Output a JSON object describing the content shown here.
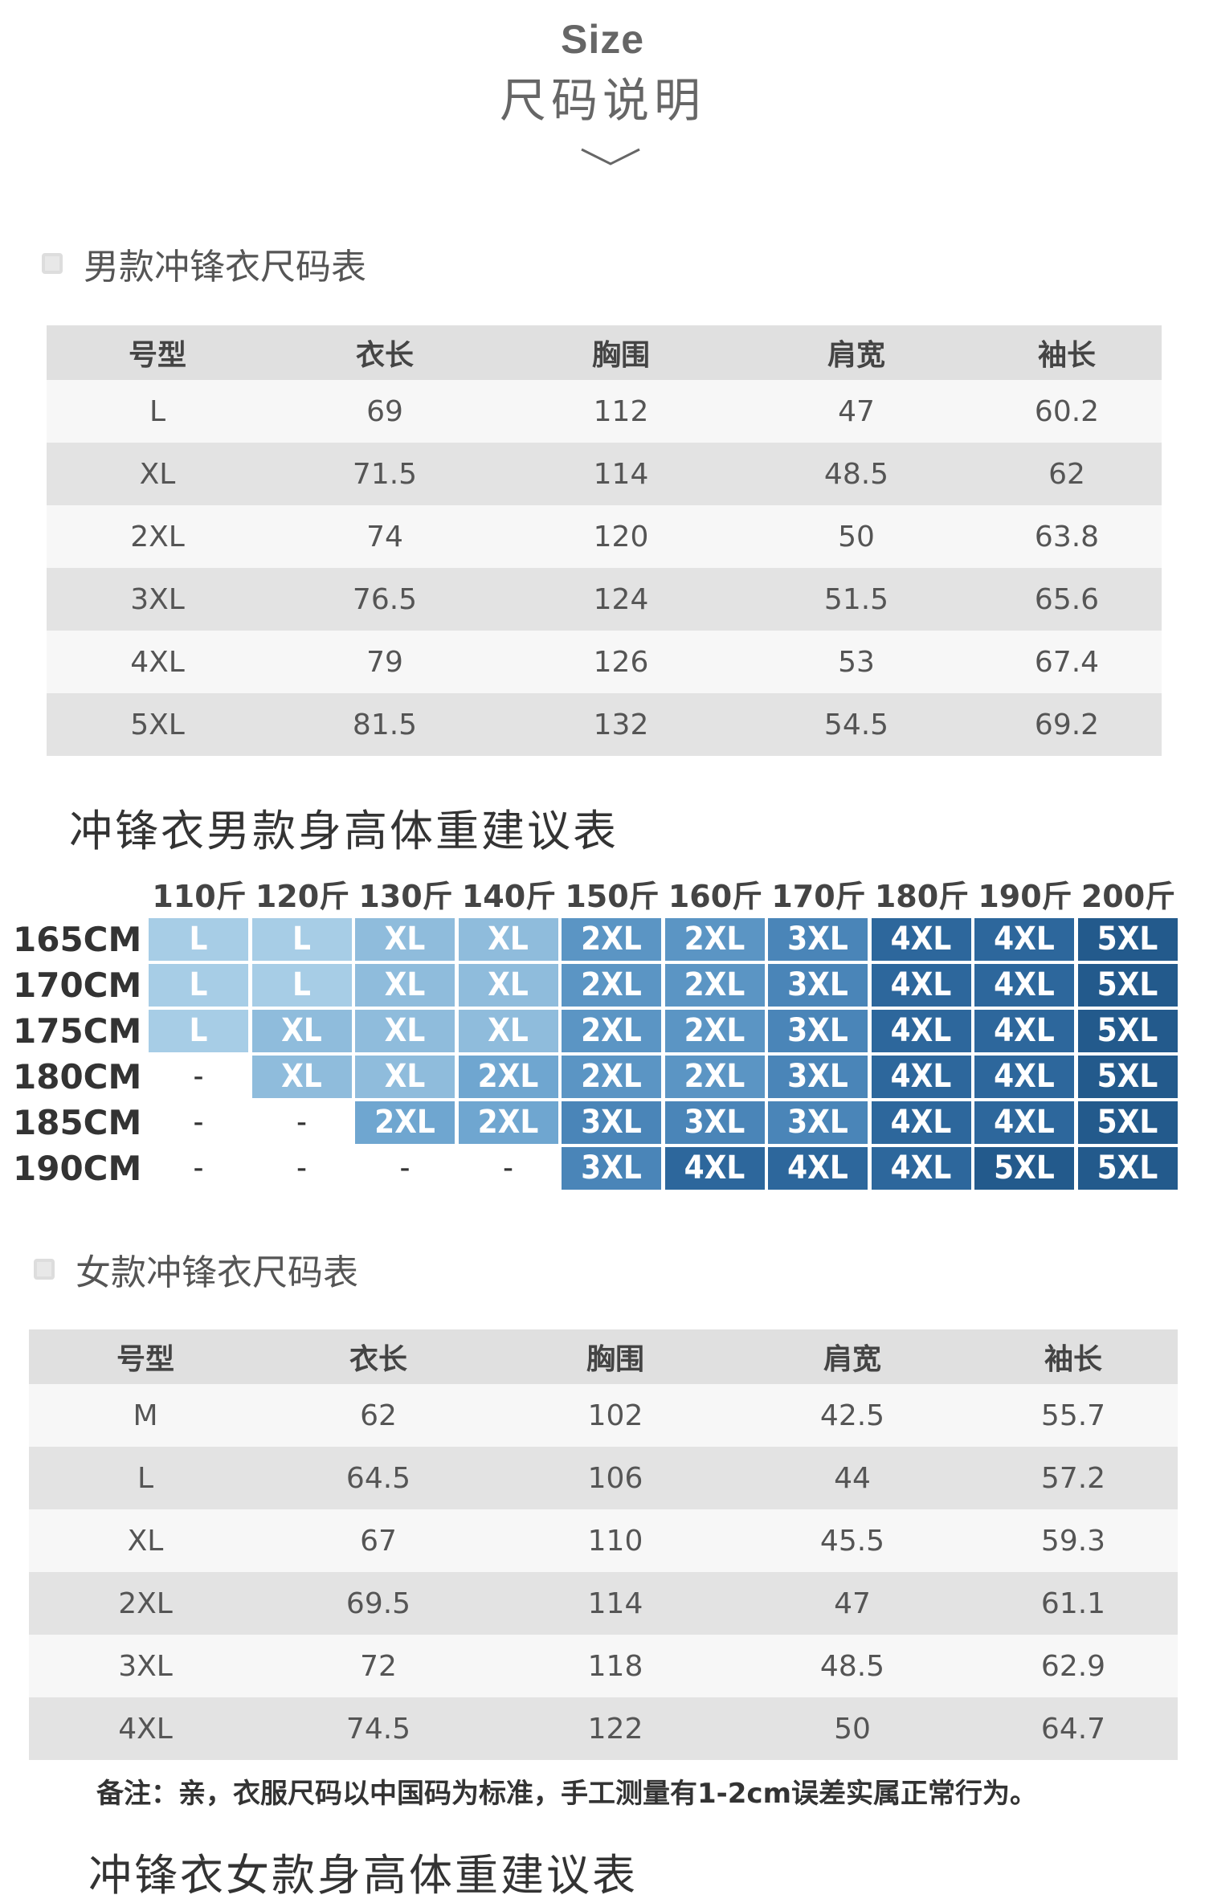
{
  "header": {
    "size": "Size",
    "cn": "尺码说明"
  },
  "men": {
    "title": "男款冲锋衣尺码表",
    "columns": [
      "号型",
      "衣长",
      "胸围",
      "肩宽",
      "袖长"
    ],
    "rows": [
      [
        "L",
        "69",
        "112",
        "47",
        "60.2"
      ],
      [
        "XL",
        "71.5",
        "114",
        "48.5",
        "62"
      ],
      [
        "2XL",
        "74",
        "120",
        "50",
        "63.8"
      ],
      [
        "3XL",
        "76.5",
        "124",
        "51.5",
        "65.6"
      ],
      [
        "4XL",
        "79",
        "126",
        "53",
        "67.4"
      ],
      [
        "5XL",
        "81.5",
        "132",
        "54.5",
        "69.2"
      ]
    ]
  },
  "recommend": {
    "title": "冲锋衣男款身高体重建议表",
    "weights": [
      "110斤",
      "120斤",
      "130斤",
      "140斤",
      "150斤",
      "160斤",
      "170斤",
      "180斤",
      "190斤",
      "200斤"
    ],
    "heights": [
      "165CM",
      "170CM",
      "175CM",
      "180CM",
      "185CM",
      "190CM"
    ],
    "grid": [
      [
        "L",
        "L",
        "XL",
        "XL",
        "2XL",
        "2XL",
        "3XL",
        "4XL",
        "4XL",
        "5XL"
      ],
      [
        "L",
        "L",
        "XL",
        "XL",
        "2XL",
        "2XL",
        "3XL",
        "4XL",
        "4XL",
        "5XL"
      ],
      [
        "L",
        "XL",
        "XL",
        "XL",
        "2XL",
        "2XL",
        "3XL",
        "4XL",
        "4XL",
        "5XL"
      ],
      [
        "-",
        "XL",
        "XL",
        "2XL",
        "2XL",
        "2XL",
        "3XL",
        "4XL",
        "4XL",
        "5XL"
      ],
      [
        "-",
        "-",
        "2XL",
        "2XL",
        "3XL",
        "3XL",
        "3XL",
        "4XL",
        "4XL",
        "5XL"
      ],
      [
        "-",
        "-",
        "-",
        "-",
        "3XL",
        "4XL",
        "4XL",
        "4XL",
        "5XL",
        "5XL"
      ]
    ],
    "colors": {
      "L": "#a7cde6",
      "XL": "#8fbcdc",
      "2XL_light": "#6fa6d0",
      "2XL": "#5b95c4",
      "3XL": "#4a85b8",
      "4XL": "#2d679c",
      "5XL": "#235a8c"
    }
  },
  "women": {
    "title": "女款冲锋衣尺码表",
    "columns": [
      "号型",
      "衣长",
      "胸围",
      "肩宽",
      "袖长"
    ],
    "rows": [
      [
        "M",
        "62",
        "102",
        "42.5",
        "55.7"
      ],
      [
        "L",
        "64.5",
        "106",
        "44",
        "57.2"
      ],
      [
        "XL",
        "67",
        "110",
        "45.5",
        "59.3"
      ],
      [
        "2XL",
        "69.5",
        "114",
        "47",
        "61.1"
      ],
      [
        "3XL",
        "72",
        "118",
        "48.5",
        "62.9"
      ],
      [
        "4XL",
        "74.5",
        "122",
        "50",
        "64.7"
      ]
    ]
  },
  "note": "备注：亲，衣服尺码以中国码为标准，手工测量有1-2cm误差实属正常行为。",
  "next_title": "冲锋衣女款身高体重建议表"
}
